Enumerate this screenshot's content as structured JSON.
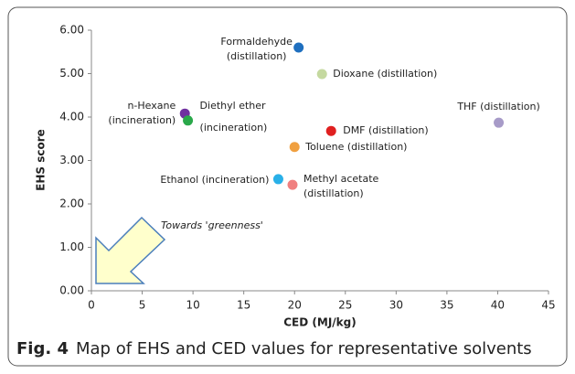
{
  "chart_data": {
    "type": "scatter",
    "xlabel": "CED (MJ/kg)",
    "ylabel": "EHS score",
    "annotation": "Towards 'greenness'",
    "caption_label": "Fig. 4",
    "caption": "Map of EHS and CED values for representative solvents",
    "xlim": [
      0,
      45
    ],
    "xticks": [
      0,
      5,
      10,
      15,
      20,
      25,
      30,
      35,
      40,
      45
    ],
    "ylim": [
      0,
      6
    ],
    "yticks": [
      {
        "value": 0,
        "label": "0.00"
      },
      {
        "value": 1,
        "label": "1.00"
      },
      {
        "value": 2,
        "label": "2.00"
      },
      {
        "value": 3,
        "label": "3.00"
      },
      {
        "value": 4,
        "label": "4.00"
      },
      {
        "value": 5,
        "label": "5.00"
      },
      {
        "value": 6,
        "label": "6.00"
      }
    ],
    "grid": false,
    "points": [
      {
        "label": [
          "Formaldehyde",
          "(distillation)"
        ],
        "x": 20.4,
        "y": 5.6,
        "color": "#1f6fbf"
      },
      {
        "label": [
          "Dioxane (distillation)"
        ],
        "x": 22.7,
        "y": 4.99,
        "color": "#c5d9a0"
      },
      {
        "label": [
          "n-Hexane",
          "(incineration)"
        ],
        "x": 9.2,
        "y": 4.08,
        "color": "#7030a0"
      },
      {
        "label": [
          "Diethyl ether",
          "(incineration)"
        ],
        "x": 9.5,
        "y": 3.92,
        "color": "#2aa84a"
      },
      {
        "label": [
          "THF (distillation)"
        ],
        "x": 40.1,
        "y": 3.87,
        "color": "#a79bc8"
      },
      {
        "label": [
          "DMF (distillation)"
        ],
        "x": 23.6,
        "y": 3.68,
        "color": "#e02020"
      },
      {
        "label": [
          "Toluene (distillation)"
        ],
        "x": 20.0,
        "y": 3.31,
        "color": "#f0a040"
      },
      {
        "label": [
          "Ethanol (incineration)"
        ],
        "x": 18.4,
        "y": 2.57,
        "color": "#29b0e8"
      },
      {
        "label": [
          "Methyl acetate",
          "(distillation)"
        ],
        "x": 19.8,
        "y": 2.44,
        "color": "#f08080"
      }
    ]
  }
}
